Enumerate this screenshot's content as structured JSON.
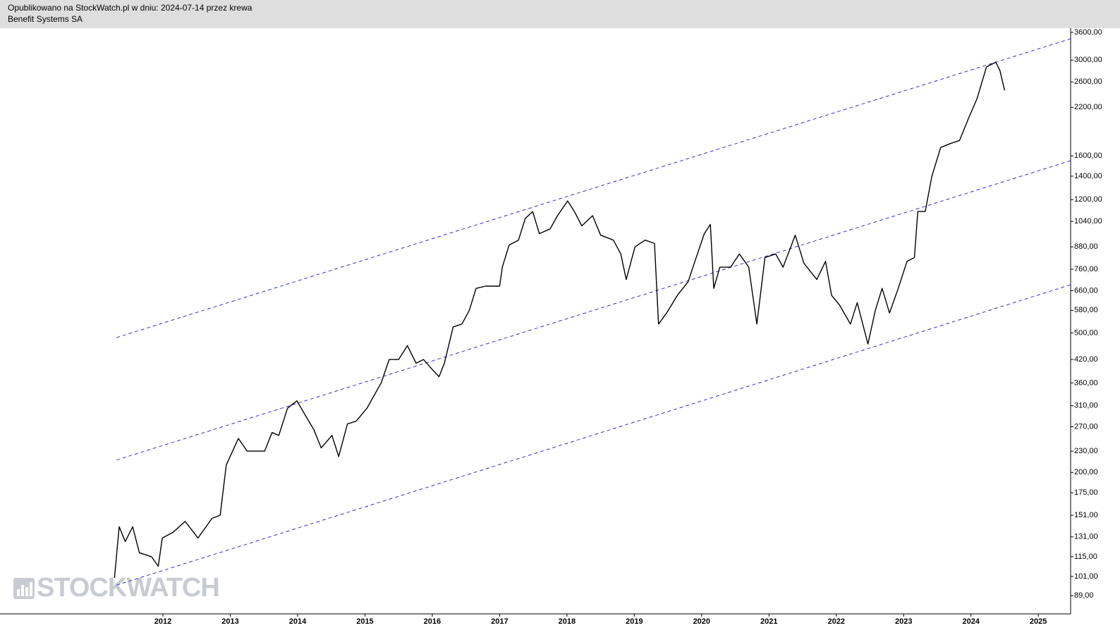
{
  "chart_data": {
    "type": "line",
    "title": "Opublikowano na StockWatch.pl w dniu: 2024-07-14 przez krewa",
    "subtitle": "Benefit Systems SA",
    "watermark": "STOCKWATCH",
    "log_scale": true,
    "xlim": [
      2009.58,
      2025.48
    ],
    "xticks": [
      2012,
      2013,
      2014,
      2015,
      2016,
      2017,
      2018,
      2019,
      2020,
      2021,
      2022,
      2023,
      2024,
      2025
    ],
    "ylim": [
      79,
      3700
    ],
    "yticks": [
      {
        "value": 89,
        "label": "89,00"
      },
      {
        "value": 101,
        "label": "101,00"
      },
      {
        "value": 115,
        "label": "115,00"
      },
      {
        "value": 131,
        "label": "131,00"
      },
      {
        "value": 151,
        "label": "151,00"
      },
      {
        "value": 175,
        "label": "175,00"
      },
      {
        "value": 200,
        "label": "200,00"
      },
      {
        "value": 230,
        "label": "230,00"
      },
      {
        "value": 270,
        "label": "270,00"
      },
      {
        "value": 310,
        "label": "310,00"
      },
      {
        "value": 360,
        "label": "360,00"
      },
      {
        "value": 420,
        "label": "420,00"
      },
      {
        "value": 500,
        "label": "500,00"
      },
      {
        "value": 580,
        "label": "580,00"
      },
      {
        "value": 660,
        "label": "660,00"
      },
      {
        "value": 760,
        "label": "760,00"
      },
      {
        "value": 880,
        "label": "880,00"
      },
      {
        "value": 1040,
        "label": "1040,00"
      },
      {
        "value": 1200,
        "label": "1200,00"
      },
      {
        "value": 1400,
        "label": "1400,00"
      },
      {
        "value": 1600,
        "label": "1600,00"
      },
      {
        "value": 2200,
        "label": "2200,00"
      },
      {
        "value": 2600,
        "label": "2600,00"
      },
      {
        "value": 3000,
        "label": "3000,00"
      },
      {
        "value": 3600,
        "label": "3600,00"
      }
    ],
    "series": [
      {
        "color": "#000000",
        "x": [
          2011.28,
          2011.35,
          2011.44,
          2011.55,
          2011.65,
          2011.83,
          2011.93,
          2011.99,
          2012.15,
          2012.33,
          2012.52,
          2012.73,
          2012.85,
          2012.94,
          2013.12,
          2013.25,
          2013.51,
          2013.62,
          2013.72,
          2013.85,
          2013.99,
          2014.12,
          2014.24,
          2014.35,
          2014.51,
          2014.61,
          2014.74,
          2014.87,
          2015.03,
          2015.24,
          2015.36,
          2015.5,
          2015.63,
          2015.76,
          2015.87,
          2015.99,
          2016.1,
          2016.18,
          2016.31,
          2016.44,
          2016.55,
          2016.65,
          2016.79,
          2017.0,
          2017.04,
          2017.14,
          2017.28,
          2017.38,
          2017.49,
          2017.59,
          2017.75,
          2017.86,
          2018.01,
          2018.11,
          2018.22,
          2018.38,
          2018.5,
          2018.69,
          2018.8,
          2018.88,
          2019.01,
          2019.16,
          2019.3,
          2019.36,
          2019.48,
          2019.64,
          2019.8,
          2019.9,
          2020.04,
          2020.13,
          2020.18,
          2020.27,
          2020.43,
          2020.56,
          2020.7,
          2020.82,
          2020.94,
          2021.1,
          2021.21,
          2021.39,
          2021.52,
          2021.71,
          2021.84,
          2021.93,
          2022.05,
          2022.21,
          2022.31,
          2022.47,
          2022.58,
          2022.68,
          2022.79,
          2022.92,
          2023.05,
          2023.16,
          2023.21,
          2023.32,
          2023.42,
          2023.55,
          2023.68,
          2023.83,
          2023.96,
          2024.09,
          2024.23,
          2024.37,
          2024.43,
          2024.5
        ],
        "values": [
          100,
          140,
          127,
          140,
          118,
          115,
          108,
          130,
          135,
          145,
          130,
          148,
          151,
          210,
          250,
          230,
          230,
          260,
          255,
          305,
          320,
          290,
          265,
          235,
          255,
          222,
          275,
          280,
          305,
          360,
          420,
          420,
          460,
          410,
          420,
          395,
          375,
          410,
          520,
          530,
          580,
          670,
          680,
          680,
          770,
          890,
          920,
          1060,
          1110,
          960,
          990,
          1080,
          1190,
          1110,
          1010,
          1080,
          950,
          920,
          840,
          710,
          880,
          920,
          900,
          530,
          570,
          640,
          700,
          800,
          960,
          1020,
          670,
          770,
          770,
          840,
          770,
          530,
          820,
          840,
          770,
          950,
          790,
          710,
          800,
          640,
          600,
          530,
          610,
          465,
          580,
          670,
          570,
          670,
          800,
          820,
          1110,
          1110,
          1400,
          1690,
          1730,
          1770,
          2040,
          2330,
          2870,
          2960,
          2800,
          2460
        ]
      }
    ],
    "trendlines": [
      {
        "color": "#3333cc",
        "x": [
          2011.31,
          2025.48
        ],
        "values": [
          485,
          3452
        ]
      },
      {
        "color": "#3333cc",
        "x": [
          2011.31,
          2025.48
        ],
        "values": [
          217,
          1550
        ]
      },
      {
        "color": "#3333cc",
        "x": [
          2011.31,
          2025.48
        ],
        "values": [
          95.4,
          686
        ]
      }
    ]
  }
}
